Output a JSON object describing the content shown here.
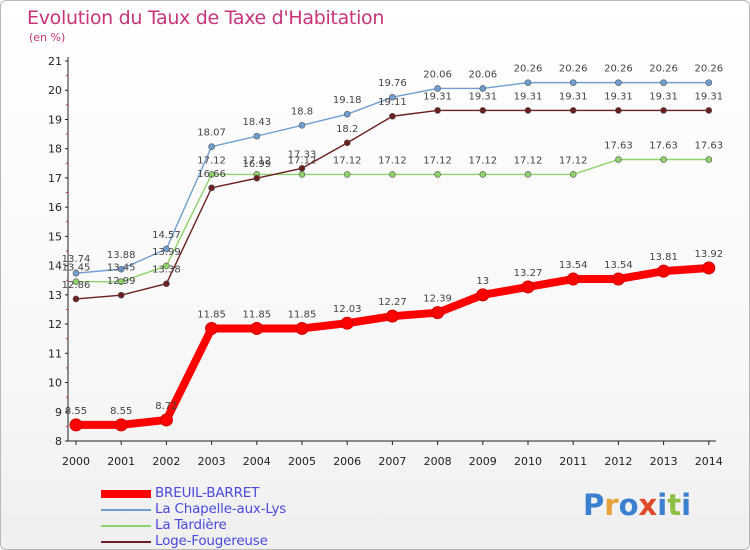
{
  "chart_data": {
    "type": "line",
    "title": "Evolution du Taux de Taxe d'Habitation",
    "subtitle": "(en %)",
    "x": [
      "2000",
      "2001",
      "2002",
      "2003",
      "2004",
      "2005",
      "2006",
      "2007",
      "2008",
      "2009",
      "2010",
      "2011",
      "2012",
      "2013",
      "2014"
    ],
    "y_ticks": [
      "8",
      "9",
      "10",
      "11",
      "12",
      "13",
      "14",
      "15",
      "16",
      "17",
      "18",
      "19",
      "20",
      "21"
    ],
    "ylim": [
      8,
      21
    ],
    "grid": false,
    "legend_position": "bottom-left",
    "series": [
      {
        "name": "BREUIL-BARRET",
        "color": "#ff0000",
        "values": [
          8.55,
          8.55,
          8.72,
          11.85,
          11.85,
          11.85,
          12.03,
          12.27,
          12.39,
          13,
          13.27,
          13.54,
          13.54,
          13.81,
          13.92
        ],
        "labels": [
          "8.55",
          "8.55",
          "8.72",
          "11.85",
          "11.85",
          "11.85",
          "12.03",
          "12.27",
          "12.39",
          "13",
          "13.27",
          "13.54",
          "13.54",
          "13.81",
          "13.92"
        ]
      },
      {
        "name": "La Chapelle-aux-Lys",
        "color": "#6f9fd0",
        "values": [
          13.74,
          13.88,
          14.57,
          18.07,
          18.43,
          18.8,
          19.18,
          19.76,
          20.06,
          20.06,
          20.26,
          20.26,
          20.26,
          20.26,
          20.26
        ],
        "labels": [
          "13.74",
          "13.88",
          "14.57",
          "18.07",
          "18.43",
          "18.8",
          "19.18",
          "19.76",
          "20.06",
          "20.06",
          "20.26",
          "20.26",
          "20.26",
          "20.26",
          "20.26"
        ]
      },
      {
        "name": "La Tardière",
        "color": "#8ed36a",
        "values": [
          13.45,
          13.45,
          13.99,
          17.12,
          17.12,
          17.12,
          17.12,
          17.12,
          17.12,
          17.12,
          17.12,
          17.12,
          17.63,
          17.63,
          17.63
        ],
        "labels": [
          "13.45",
          "13.45",
          "13.99",
          "17.12",
          "17.12",
          "17.12",
          "17.12",
          "17.12",
          "17.12",
          "17.12",
          "17.12",
          "17.12",
          "17.63",
          "17.63",
          "17.63"
        ]
      },
      {
        "name": "Loge-Fougereuse",
        "color": "#6b1f1f",
        "values": [
          12.86,
          12.99,
          13.38,
          16.66,
          16.99,
          17.33,
          18.2,
          19.11,
          19.31,
          19.31,
          19.31,
          19.31,
          19.31,
          19.31,
          19.31
        ],
        "labels": [
          "12.86",
          "12.99",
          "13.38",
          "16.66",
          "16.99",
          "17.33",
          "18.2",
          "19.11",
          "19.31",
          "19.31",
          "19.31",
          "19.31",
          "19.31",
          "19.31",
          "19.31"
        ]
      }
    ]
  },
  "logo": {
    "text": "Proxiti"
  }
}
